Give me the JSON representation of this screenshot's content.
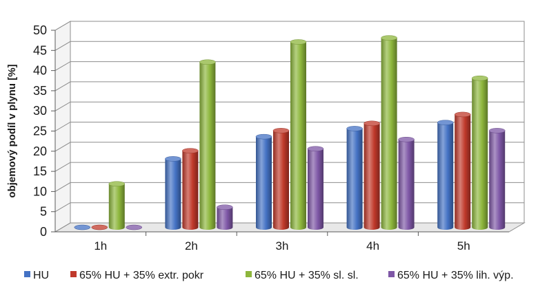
{
  "chart_data": {
    "type": "bar",
    "bar_style": "3d-cylinder",
    "title": "",
    "xlabel": "",
    "ylabel": "objemový podíl v plynu [%]",
    "ylim": [
      0,
      50
    ],
    "y_ticks": [
      0,
      5,
      10,
      15,
      20,
      25,
      30,
      35,
      40,
      45,
      50
    ],
    "grid": true,
    "legend_position": "bottom",
    "categories": [
      "1h",
      "2h",
      "3h",
      "4h",
      "5h"
    ],
    "series": [
      {
        "name": "HU",
        "color": "#4472C4",
        "values": [
          0,
          17,
          22.5,
          24.5,
          26
        ]
      },
      {
        "name": "65% HU + 35% extr. pokr",
        "color": "#C0392B",
        "values": [
          0,
          19,
          24,
          25.8,
          28
        ]
      },
      {
        "name": "65% HU + 35% sl. sl.",
        "color": "#8DB63C",
        "values": [
          10.8,
          41,
          46,
          47,
          37
        ]
      },
      {
        "name": "65% HU + 35% lih. výp.",
        "color": "#7E57A6",
        "values": [
          0,
          5,
          19.5,
          21.8,
          24
        ]
      }
    ]
  }
}
